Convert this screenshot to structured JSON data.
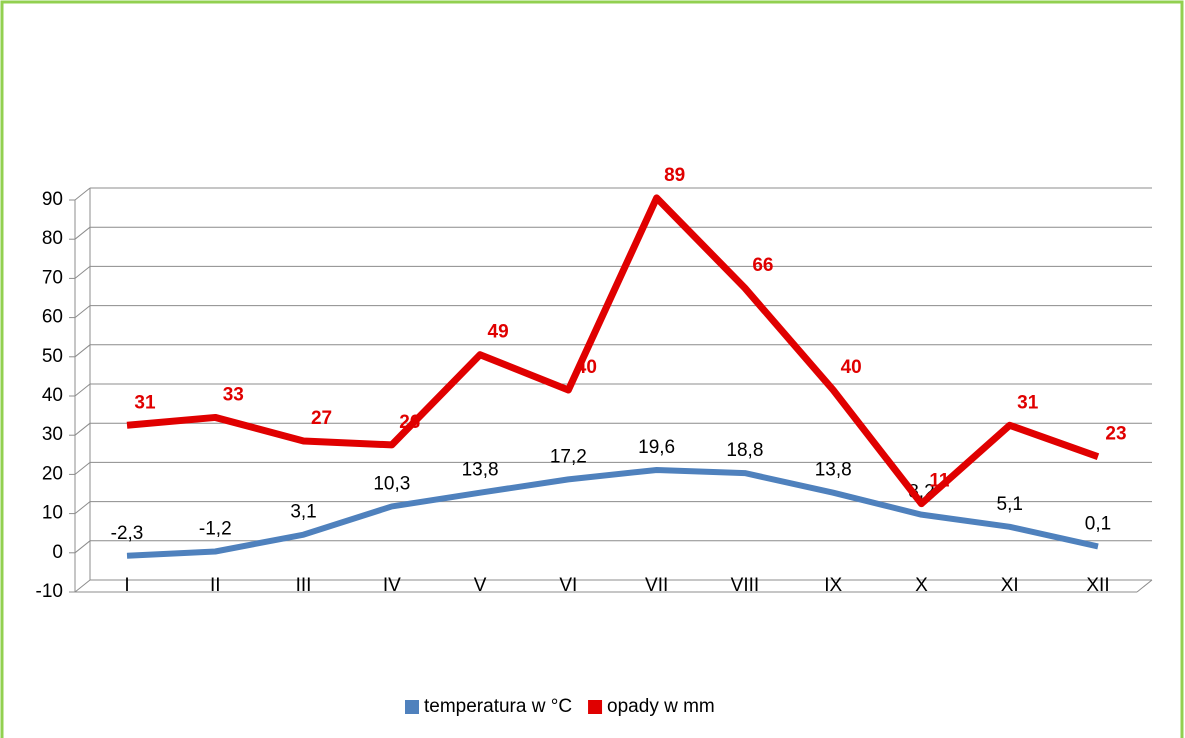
{
  "chart_data": {
    "type": "line",
    "categories": [
      "I",
      "II",
      "III",
      "IV",
      "V",
      "VI",
      "VII",
      "VIII",
      "IX",
      "X",
      "XI",
      "XII"
    ],
    "series": [
      {
        "name": "temperatura w °C",
        "color": "#4f81bd",
        "values": [
          -2.3,
          -1.2,
          3.1,
          10.3,
          13.8,
          17.2,
          19.6,
          18.8,
          13.8,
          8.2,
          5.1,
          0.1
        ],
        "value_labels": [
          "-2,3",
          "-1,2",
          "3,1",
          "10,3",
          "13,8",
          "17,2",
          "19,6",
          "18,8",
          "13,8",
          "8,2",
          "5,1",
          "0,1"
        ]
      },
      {
        "name": "opady w mm",
        "color": "#e00000",
        "values": [
          31,
          33,
          27,
          26,
          49,
          40,
          89,
          66,
          40,
          11,
          31,
          23
        ]
      }
    ],
    "ylim": [
      -10,
      90
    ],
    "yticks": [
      -10,
      0,
      10,
      20,
      30,
      40,
      50,
      60,
      70,
      80,
      90
    ],
    "grid": true,
    "legend": "bottom"
  }
}
